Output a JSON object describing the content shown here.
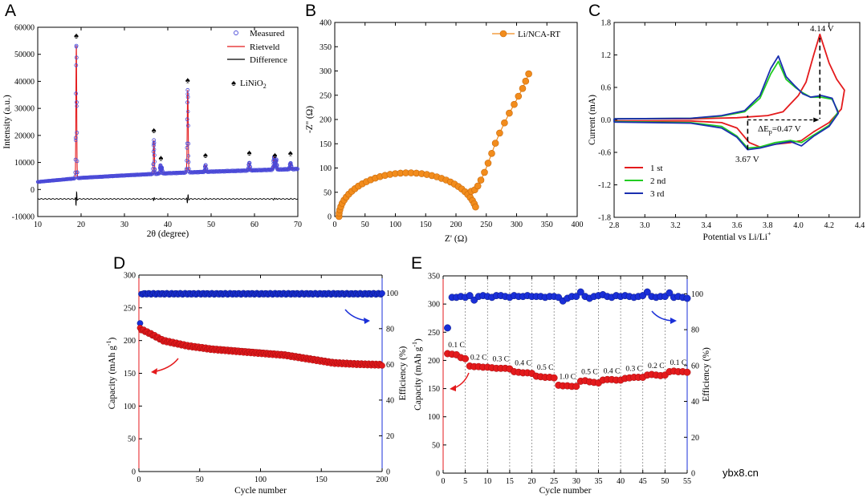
{
  "watermark": "ybx8.cn",
  "chart_data": [
    {
      "id": "A",
      "panel_label": "A",
      "type": "line",
      "xlabel": "2θ (degree)",
      "ylabel": "Intensity (a.u.)",
      "xlim": [
        10,
        70
      ],
      "ylim": [
        -10000,
        60000
      ],
      "xticks": [
        10,
        20,
        30,
        40,
        50,
        60,
        70
      ],
      "yticks": [
        -10000,
        0,
        10000,
        20000,
        30000,
        40000,
        50000,
        60000
      ],
      "legend": {
        "measured": "Measured",
        "rietveld": "Rietveld",
        "difference": "Difference",
        "phase": "LiNiO",
        "phase_sub": "2"
      },
      "colors": {
        "measured": "#4a4ad8",
        "rietveld": "#e41a1c",
        "difference": "#000000"
      },
      "background": [
        [
          10,
          2800
        ],
        [
          20,
          4300
        ],
        [
          30,
          5200
        ],
        [
          40,
          6000
        ],
        [
          50,
          6600
        ],
        [
          60,
          7100
        ],
        [
          70,
          7600
        ]
      ],
      "peaks": [
        {
          "x": 18.9,
          "h": 49000,
          "w": 0.09
        },
        {
          "x": 36.8,
          "h": 12500,
          "w": 0.1
        },
        {
          "x": 38.3,
          "h": 3000,
          "w": 0.1
        },
        {
          "x": 38.6,
          "h": 2200,
          "w": 0.1
        },
        {
          "x": 44.6,
          "h": 30500,
          "w": 0.11
        },
        {
          "x": 48.7,
          "h": 2500,
          "w": 0.12
        },
        {
          "x": 58.8,
          "h": 2800,
          "w": 0.13
        },
        {
          "x": 64.5,
          "h": 4500,
          "w": 0.13
        },
        {
          "x": 65.0,
          "h": 3800,
          "w": 0.13
        },
        {
          "x": 68.3,
          "h": 2200,
          "w": 0.14
        }
      ],
      "difference_offset": -3500,
      "phase_markers": [
        18.9,
        36.8,
        38.4,
        44.6,
        48.7,
        58.8,
        64.7,
        68.3
      ]
    },
    {
      "id": "B",
      "panel_label": "B",
      "type": "scatter",
      "xlabel": "Z' (Ω)",
      "ylabel": "-Z'' (Ω)",
      "xlim": [
        0,
        400
      ],
      "ylim": [
        0,
        400
      ],
      "xticks": [
        0,
        50,
        100,
        150,
        200,
        250,
        300,
        350,
        400
      ],
      "yticks": [
        0,
        50,
        100,
        150,
        200,
        250,
        300,
        350,
        400
      ],
      "legend": "Li/NCA-RT",
      "color": "#f28c1c",
      "semicircle": {
        "start": 7,
        "end": 235,
        "height": 90
      },
      "tail": [
        [
          225,
          52
        ],
        [
          231,
          55
        ],
        [
          236,
          63
        ],
        [
          241,
          75
        ],
        [
          247,
          91
        ],
        [
          253,
          110
        ],
        [
          259,
          130
        ],
        [
          265,
          151
        ],
        [
          272,
          172
        ],
        [
          280,
          193
        ],
        [
          288,
          213
        ],
        [
          296,
          231
        ],
        [
          303,
          248
        ],
        [
          310,
          264
        ],
        [
          315,
          279
        ],
        [
          320,
          294
        ]
      ]
    },
    {
      "id": "C",
      "panel_label": "C",
      "type": "line",
      "xlabel": "Potential vs Li/Li",
      "xlabel_sup": "+",
      "ylabel": "Current (mA)",
      "xlim": [
        2.8,
        4.4
      ],
      "ylim": [
        -1.8,
        1.8
      ],
      "xticks": [
        2.8,
        3.0,
        3.2,
        3.4,
        3.6,
        3.8,
        4.0,
        4.2,
        4.4
      ],
      "yticks": [
        -1.8,
        -1.2,
        -0.6,
        0.0,
        0.6,
        1.2,
        1.8
      ],
      "series": [
        {
          "name": "1 st",
          "color": "#e41a1c",
          "points": [
            [
              2.8,
              -0.02
            ],
            [
              3.3,
              -0.02
            ],
            [
              3.5,
              -0.05
            ],
            [
              3.6,
              -0.15
            ],
            [
              3.68,
              -0.42
            ],
            [
              3.75,
              -0.5
            ],
            [
              3.85,
              -0.45
            ],
            [
              3.95,
              -0.42
            ],
            [
              4.02,
              -0.38
            ],
            [
              4.1,
              -0.22
            ],
            [
              4.2,
              -0.05
            ],
            [
              4.28,
              0.2
            ],
            [
              4.3,
              0.55
            ],
            [
              4.25,
              0.75
            ],
            [
              4.2,
              1.05
            ],
            [
              4.14,
              1.58
            ],
            [
              4.1,
              1.2
            ],
            [
              4.05,
              0.7
            ],
            [
              4.0,
              0.45
            ],
            [
              3.95,
              0.3
            ],
            [
              3.9,
              0.15
            ],
            [
              3.8,
              0.08
            ],
            [
              3.6,
              0.04
            ],
            [
              3.3,
              0.02
            ],
            [
              2.8,
              0.02
            ]
          ]
        },
        {
          "name": "2 nd",
          "color": "#22cc22",
          "points": [
            [
              2.8,
              -0.03
            ],
            [
              3.3,
              -0.05
            ],
            [
              3.5,
              -0.12
            ],
            [
              3.6,
              -0.3
            ],
            [
              3.67,
              -0.52
            ],
            [
              3.75,
              -0.5
            ],
            [
              3.85,
              -0.42
            ],
            [
              3.95,
              -0.38
            ],
            [
              4.02,
              -0.42
            ],
            [
              4.1,
              -0.28
            ],
            [
              4.2,
              -0.1
            ],
            [
              4.26,
              0.15
            ],
            [
              4.22,
              0.38
            ],
            [
              4.15,
              0.42
            ],
            [
              4.08,
              0.42
            ],
            [
              4.03,
              0.5
            ],
            [
              3.98,
              0.6
            ],
            [
              3.92,
              0.75
            ],
            [
              3.87,
              1.08
            ],
            [
              3.82,
              0.85
            ],
            [
              3.75,
              0.4
            ],
            [
              3.65,
              0.15
            ],
            [
              3.5,
              0.07
            ],
            [
              3.3,
              0.03
            ],
            [
              2.8,
              0.02
            ]
          ]
        },
        {
          "name": "3 rd",
          "color": "#1a2fb0",
          "points": [
            [
              2.8,
              -0.04
            ],
            [
              3.3,
              -0.06
            ],
            [
              3.5,
              -0.15
            ],
            [
              3.6,
              -0.32
            ],
            [
              3.67,
              -0.55
            ],
            [
              3.75,
              -0.52
            ],
            [
              3.85,
              -0.45
            ],
            [
              3.95,
              -0.4
            ],
            [
              4.02,
              -0.48
            ],
            [
              4.1,
              -0.3
            ],
            [
              4.2,
              -0.12
            ],
            [
              4.26,
              0.12
            ],
            [
              4.22,
              0.4
            ],
            [
              4.15,
              0.45
            ],
            [
              4.08,
              0.42
            ],
            [
              4.03,
              0.48
            ],
            [
              3.98,
              0.62
            ],
            [
              3.92,
              0.8
            ],
            [
              3.87,
              1.18
            ],
            [
              3.82,
              0.95
            ],
            [
              3.75,
              0.45
            ],
            [
              3.65,
              0.17
            ],
            [
              3.5,
              0.08
            ],
            [
              3.3,
              0.03
            ],
            [
              2.8,
              0.02
            ]
          ]
        }
      ],
      "annotations": {
        "peak_ox": "4.14 V",
        "peak_red": "3.67 V",
        "delta_e": "ΔE",
        "delta_sub": "p",
        "delta_val": "=0.47 V"
      },
      "ox_x": 4.14,
      "red_x": 3.67
    },
    {
      "id": "D",
      "panel_label": "D",
      "type": "scatter",
      "xlabel": "Cycle number",
      "ylabel_left": "Capacity (mAh g",
      "ylabel_left_sup": "-1",
      "ylabel_left_end": ")",
      "ylabel_right": "Efficiency (%)",
      "xlim": [
        0,
        200
      ],
      "ylim_left": [
        0,
        300
      ],
      "ylim_right": [
        0,
        110
      ],
      "xticks": [
        0,
        50,
        100,
        150,
        200
      ],
      "yticks_left": [
        0,
        50,
        100,
        150,
        200,
        250,
        300
      ],
      "yticks_right": [
        0,
        20,
        40,
        60,
        80,
        100
      ],
      "capacity_color": "#e41a1c",
      "efficiency_color": "#1a2fd8",
      "capacity_profile": [
        [
          1,
          218
        ],
        [
          10,
          210
        ],
        [
          20,
          200
        ],
        [
          40,
          192
        ],
        [
          60,
          187
        ],
        [
          80,
          184
        ],
        [
          100,
          181
        ],
        [
          120,
          178
        ],
        [
          140,
          172
        ],
        [
          160,
          166
        ],
        [
          180,
          164
        ],
        [
          200,
          163
        ]
      ],
      "efficiency_first": 83,
      "efficiency_rest": 99.5
    },
    {
      "id": "E",
      "panel_label": "E",
      "type": "scatter",
      "xlabel": "Cycle number",
      "ylabel_left": "Capacity (mAh g",
      "ylabel_left_sup": "-1",
      "ylabel_left_end": ")",
      "ylabel_right": "Efficiency (%)",
      "xlim": [
        0,
        55
      ],
      "ylim_left": [
        0,
        350
      ],
      "ylim_right": [
        0,
        110
      ],
      "xticks": [
        0,
        5,
        10,
        15,
        20,
        25,
        30,
        35,
        40,
        45,
        50,
        55
      ],
      "yticks_left": [
        0,
        50,
        100,
        150,
        200,
        250,
        300,
        350
      ],
      "yticks_right": [
        0,
        20,
        40,
        60,
        80,
        100
      ],
      "capacity_color": "#e41a1c",
      "efficiency_color": "#1a2fd8",
      "rate_labels": [
        "0.1 C",
        "0.2 C",
        "0.3 C",
        "0.4 C",
        "0.5 C",
        "1.0 C",
        "0.5 C",
        "0.4 C",
        "0.3 C",
        "0.2 C",
        "0.1 C"
      ],
      "capacity": [
        212,
        211,
        210,
        205,
        203,
        190,
        189,
        189,
        188,
        188,
        187,
        186,
        186,
        186,
        185,
        180,
        179,
        178,
        178,
        177,
        172,
        171,
        170,
        170,
        169,
        156,
        155,
        155,
        154,
        154,
        163,
        164,
        162,
        161,
        160,
        165,
        166,
        166,
        165,
        165,
        168,
        169,
        170,
        170,
        170,
        174,
        175,
        174,
        173,
        174,
        180,
        181,
        180,
        180,
        179
      ],
      "efficiency": [
        81,
        98,
        98,
        98.5,
        98,
        99,
        96.5,
        98.5,
        99,
        98.5,
        98,
        99,
        99,
        98.5,
        98,
        99,
        98.5,
        98.5,
        99,
        98.5,
        98.5,
        98.5,
        98,
        98.5,
        98.5,
        98,
        96,
        97.5,
        98.5,
        98.5,
        101,
        98.5,
        97.5,
        98.5,
        99,
        99.5,
        98.5,
        98,
        99,
        98.5,
        99,
        98.5,
        98,
        98.5,
        99,
        101,
        98.5,
        98,
        98.5,
        98.5,
        100.5,
        98,
        98.5,
        98,
        97.5
      ]
    }
  ]
}
